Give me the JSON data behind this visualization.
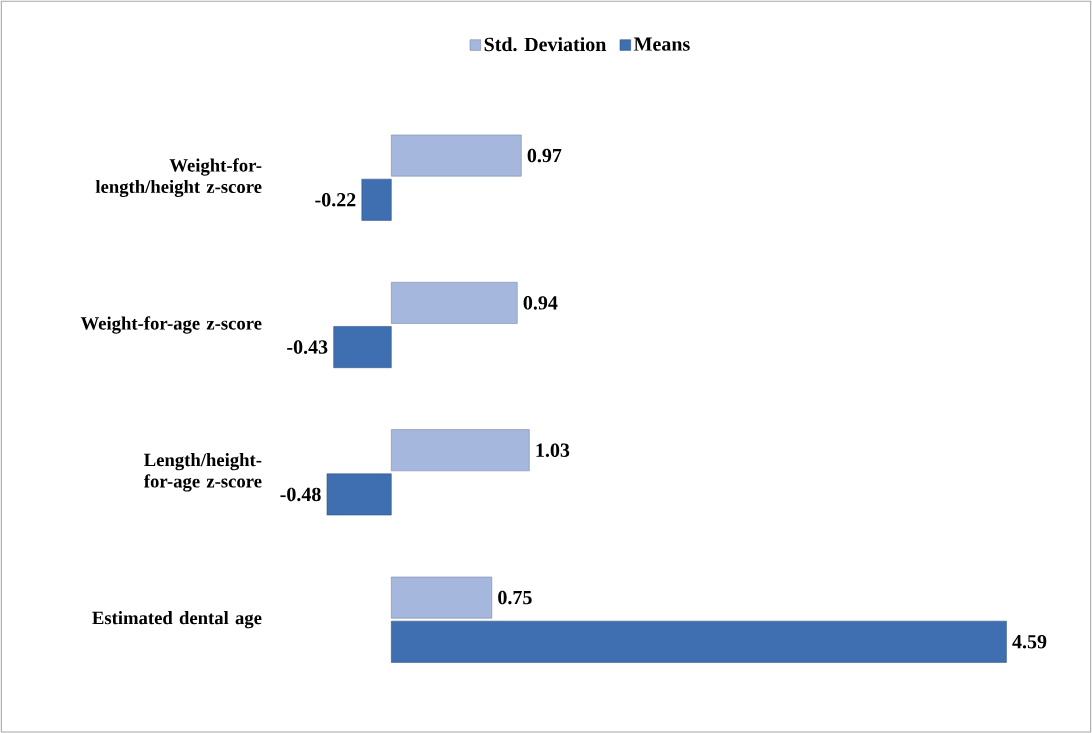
{
  "chart_data": {
    "type": "bar",
    "orientation": "horizontal",
    "categories": [
      "Weight-for-length/height z-score",
      "Weight-for-age z-score",
      "Length/height-for-age z-score",
      "Estimated dental age"
    ],
    "series": [
      {
        "name": "Std. Deviation",
        "color": "#a6b7de",
        "values": [
          0.97,
          0.94,
          1.03,
          0.75
        ]
      },
      {
        "name": "Means",
        "color": "#3f6fb0",
        "values": [
          -0.22,
          -0.43,
          -0.48,
          4.59
        ]
      }
    ],
    "data_labels": true,
    "legend": "top"
  }
}
